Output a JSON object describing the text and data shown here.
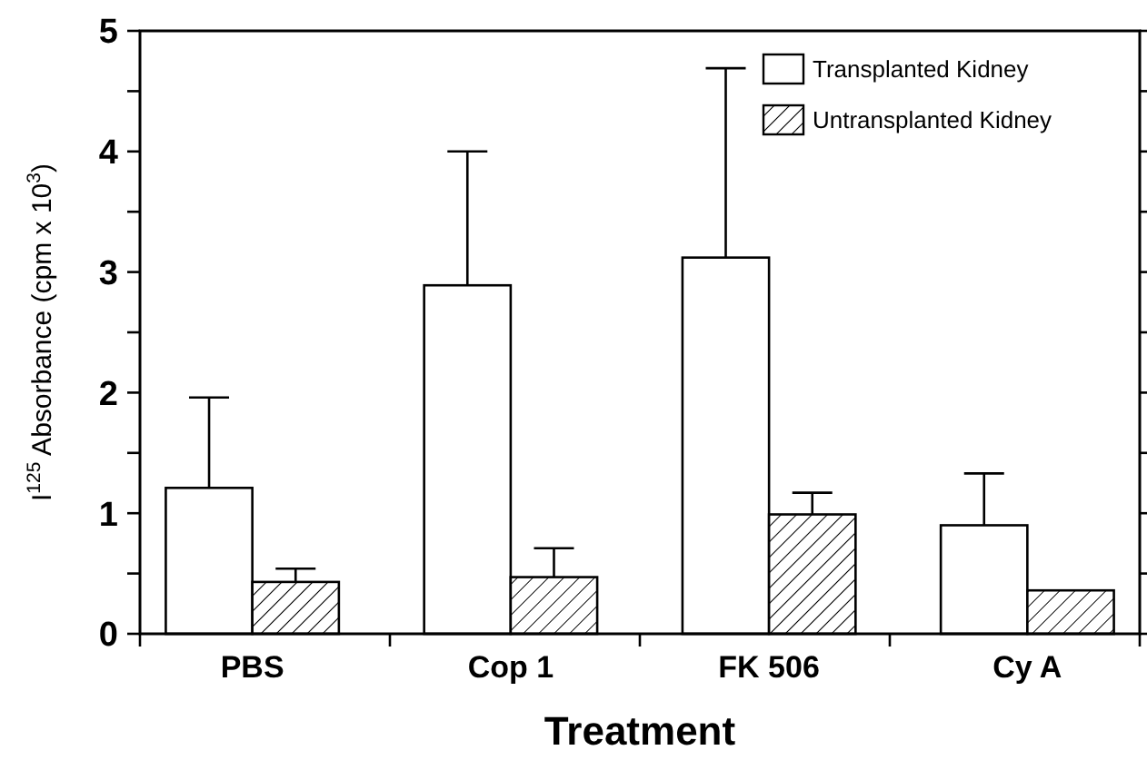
{
  "chart_data": {
    "type": "bar",
    "xlabel": "Treatment",
    "ylabel": "I$^{125}$ Absorbance (cpm x 10$^{3}$)",
    "categories": [
      "PBS",
      "Cop 1",
      "FK 506",
      "Cy A"
    ],
    "series": [
      {
        "name": "Transplanted Kidney",
        "color": "#ffffff",
        "values": [
          1.21,
          2.89,
          3.12,
          0.9
        ],
        "errors": [
          [
            1.21,
            1.96
          ],
          [
            2.89,
            4.0
          ],
          [
            3.12,
            4.69
          ],
          [
            0.9,
            1.33
          ]
        ]
      },
      {
        "name": "Untransplanted Kidney",
        "color": "#000000",
        "values": [
          0.43,
          0.47,
          0.99,
          0.36
        ],
        "errors": [
          [
            0.43,
            0.54
          ],
          [
            0.47,
            0.71
          ],
          [
            0.99,
            1.17
          ],
          null
        ]
      }
    ],
    "ylim": [
      0,
      5
    ],
    "yticks": [
      0,
      {
        "value": 0.5,
        "label": null
      },
      1,
      {
        "value": 1.5,
        "label": null
      },
      2,
      {
        "value": 2.5,
        "label": null
      },
      3,
      {
        "value": 3.5,
        "label": null
      },
      4,
      {
        "value": 4.5,
        "label": null
      },
      5
    ],
    "grid": false,
    "legend": "top right"
  }
}
